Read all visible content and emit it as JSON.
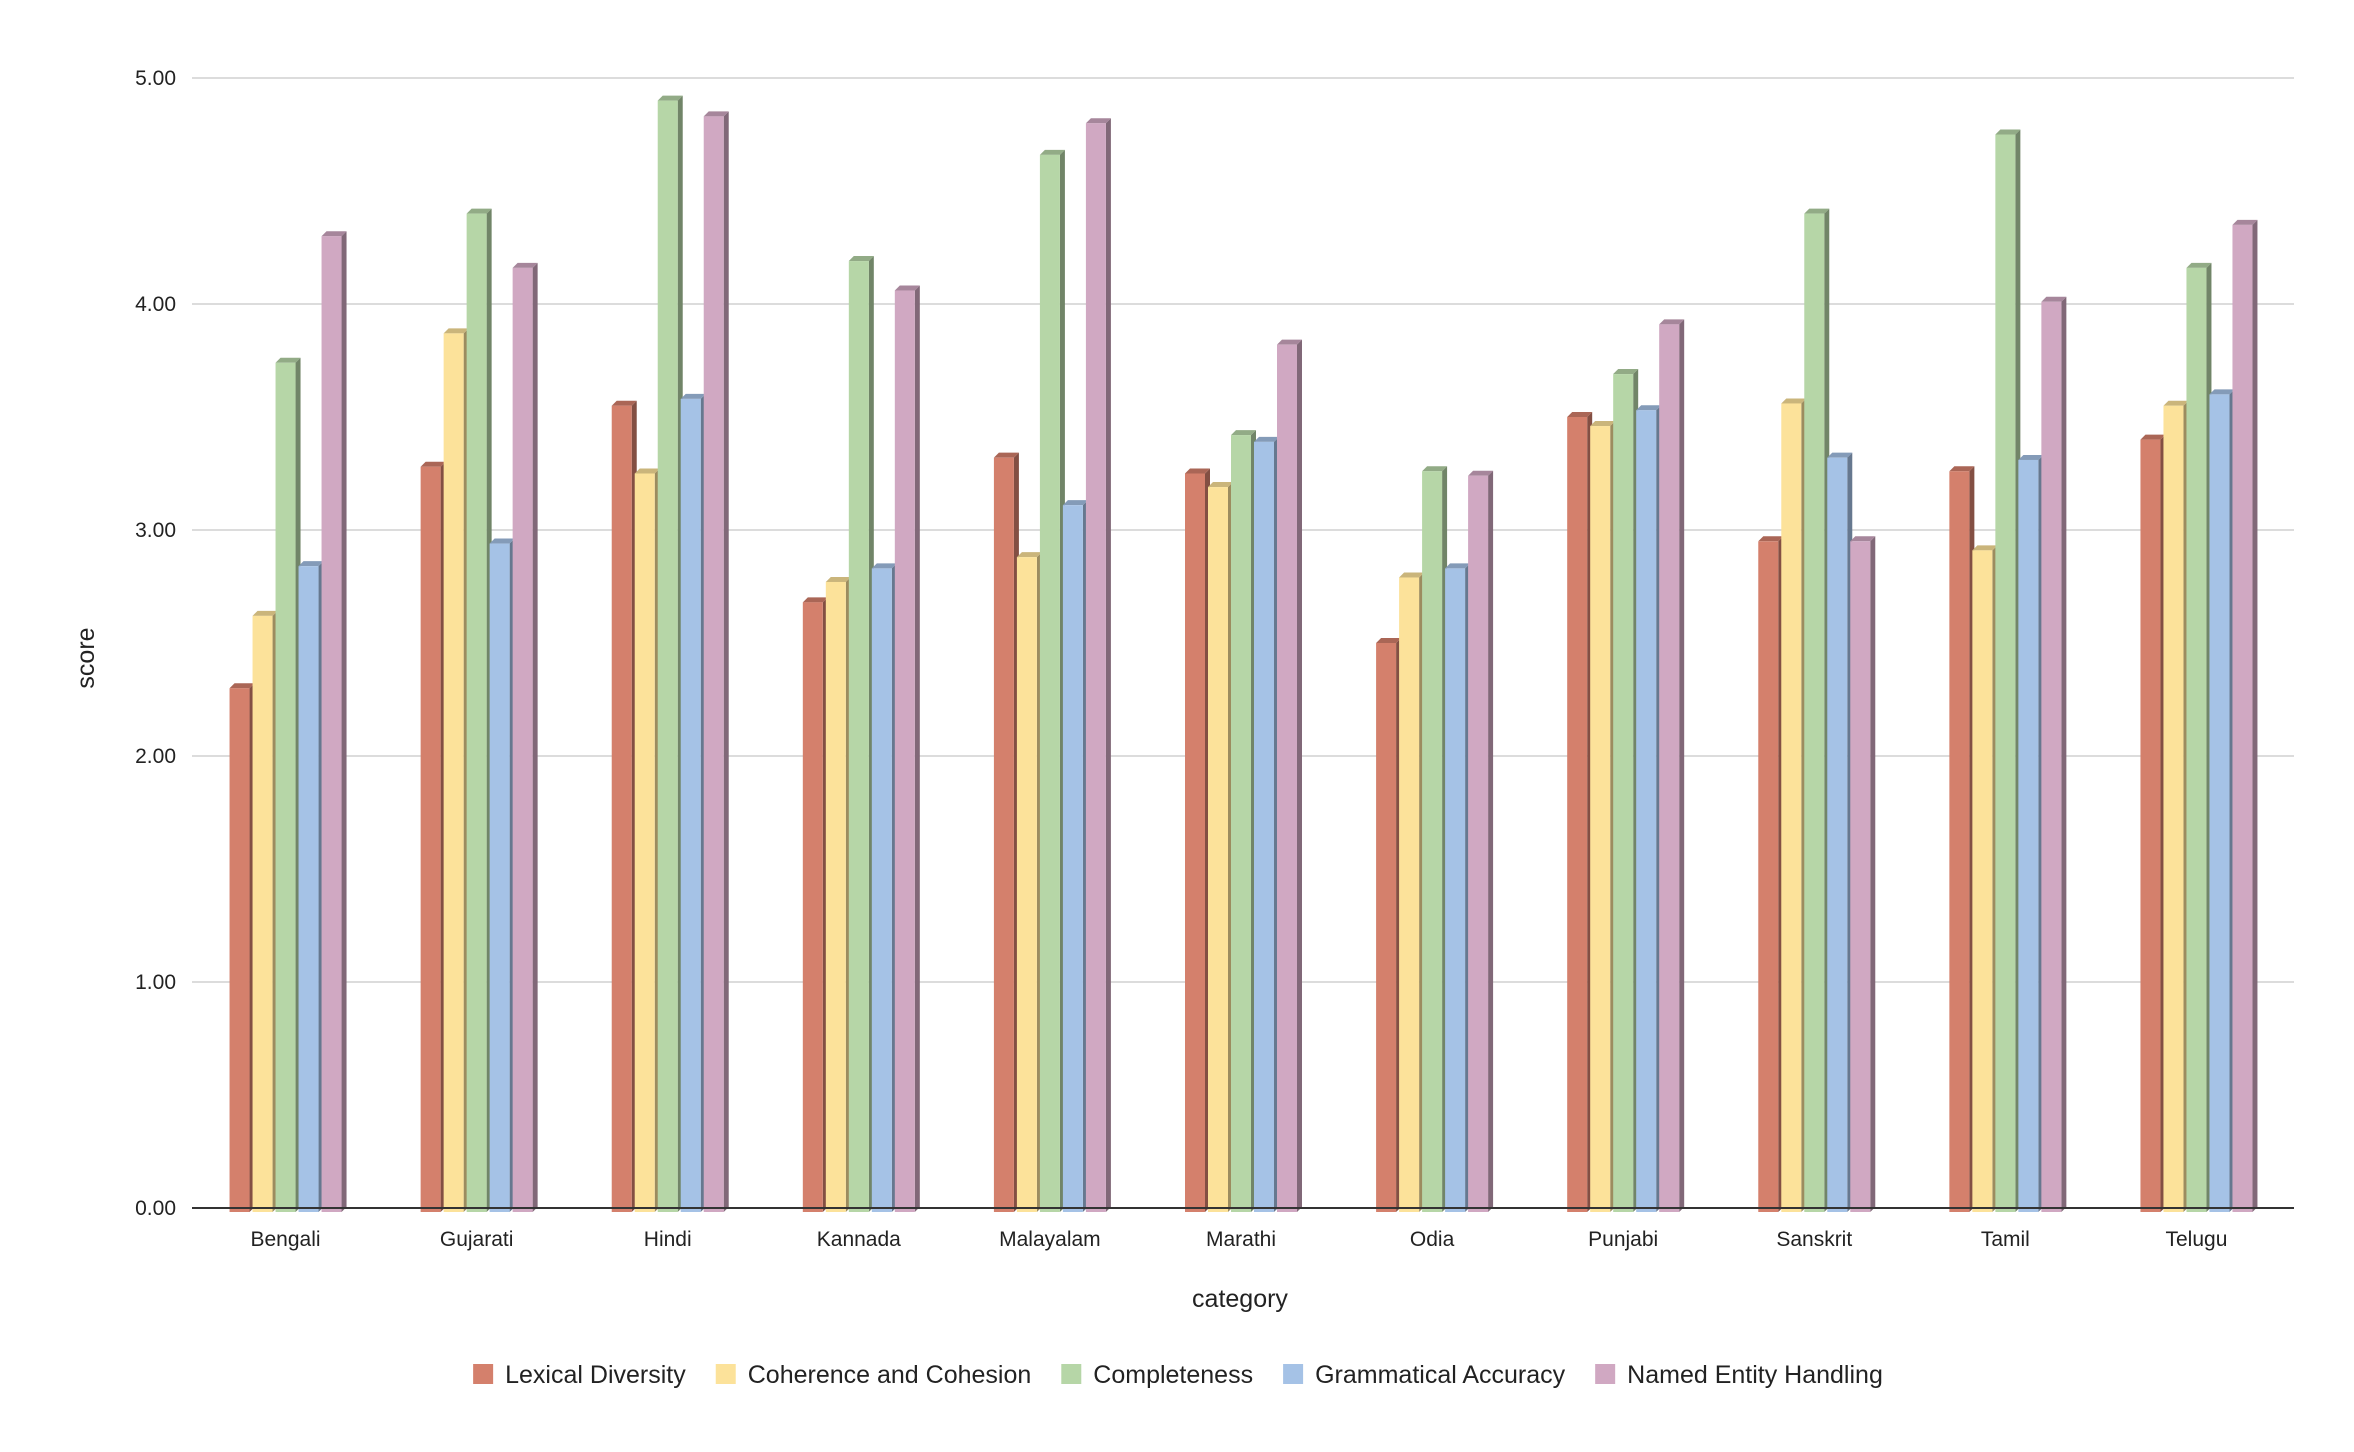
{
  "chart_data": {
    "type": "bar",
    "title": "",
    "xlabel": "category",
    "ylabel": "score",
    "ylim": [
      0,
      5
    ],
    "yticks": [
      "0.00",
      "1.00",
      "2.00",
      "3.00",
      "4.00",
      "5.00"
    ],
    "grid": true,
    "legend_position": "bottom",
    "categories": [
      "Bengali",
      "Gujarati",
      "Hindi",
      "Kannada",
      "Malayalam",
      "Marathi",
      "Odia",
      "Punjabi",
      "Sanskrit",
      "Tamil",
      "Telugu"
    ],
    "series": [
      {
        "name": "Lexical Diversity",
        "color": "#d4806c",
        "values": [
          2.3,
          3.28,
          3.55,
          2.68,
          3.32,
          3.25,
          2.5,
          3.5,
          2.95,
          3.26,
          3.4
        ]
      },
      {
        "name": "Coherence and Cohesion",
        "color": "#fce29a",
        "values": [
          2.62,
          3.87,
          3.25,
          2.77,
          2.88,
          3.19,
          2.79,
          3.46,
          3.56,
          2.91,
          3.55
        ]
      },
      {
        "name": "Completeness",
        "color": "#b6d6a7",
        "values": [
          3.74,
          4.4,
          4.9,
          4.19,
          4.66,
          3.42,
          3.26,
          3.69,
          4.4,
          4.75,
          4.16
        ]
      },
      {
        "name": "Grammatical Accuracy",
        "color": "#a5c2e6",
        "values": [
          2.84,
          2.94,
          3.58,
          2.83,
          3.11,
          3.39,
          2.83,
          3.53,
          3.32,
          3.31,
          3.6
        ]
      },
      {
        "name": "Named Entity Handling",
        "color": "#d0a8c2",
        "values": [
          4.3,
          4.16,
          4.83,
          4.06,
          4.8,
          3.82,
          3.24,
          3.91,
          2.95,
          4.01,
          4.35
        ]
      }
    ]
  }
}
